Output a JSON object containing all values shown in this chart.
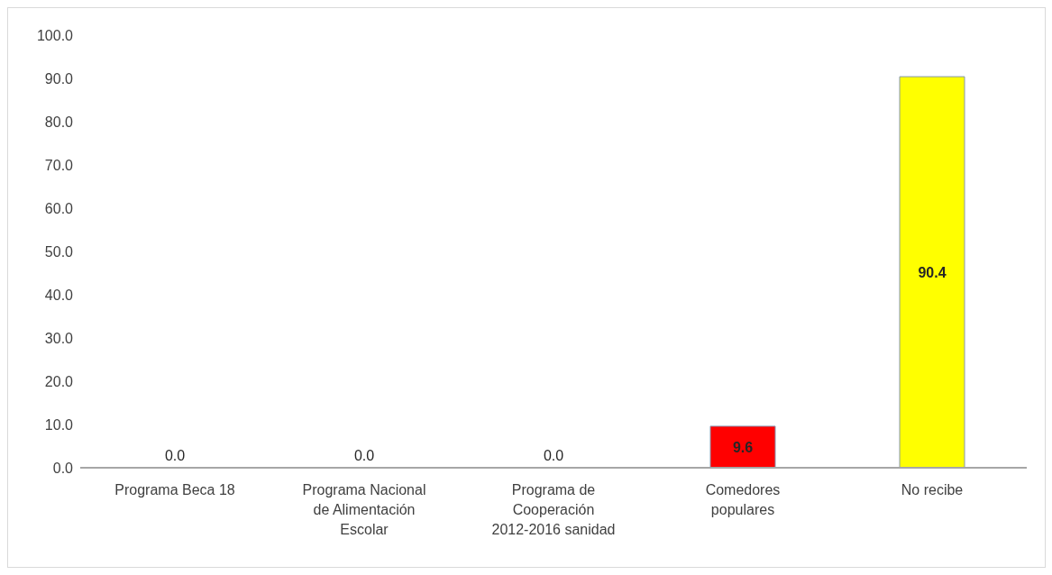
{
  "chart_data": {
    "type": "bar",
    "categories": [
      "Programa Beca 18",
      "Programa Nacional de Alimentación Escolar",
      "Programa de Cooperación 2012-2016 sanidad",
      "Comedores populares",
      "No recibe"
    ],
    "values": [
      0.0,
      0.0,
      0.0,
      9.6,
      90.4
    ],
    "colors": [
      "#ff0000",
      "#ff0000",
      "#ff0000",
      "#ff0000",
      "#ffff00"
    ],
    "value_labels": [
      "0.0",
      "0.0",
      "0.0",
      "9.6",
      "90.4"
    ],
    "ylim": [
      0,
      100
    ],
    "yticks": [
      {
        "value": 0,
        "label": "0.0"
      },
      {
        "value": 10,
        "label": "10.0"
      },
      {
        "value": 20,
        "label": "20.0"
      },
      {
        "value": 30,
        "label": "30.0"
      },
      {
        "value": 40,
        "label": "40.0"
      },
      {
        "value": 50,
        "label": "50.0"
      },
      {
        "value": 60,
        "label": "60.0"
      },
      {
        "value": 70,
        "label": "70.0"
      },
      {
        "value": 80,
        "label": "80.0"
      },
      {
        "value": 90,
        "label": "90.0"
      },
      {
        "value": 100,
        "label": "100.0"
      }
    ],
    "grid": false,
    "legend": false
  }
}
